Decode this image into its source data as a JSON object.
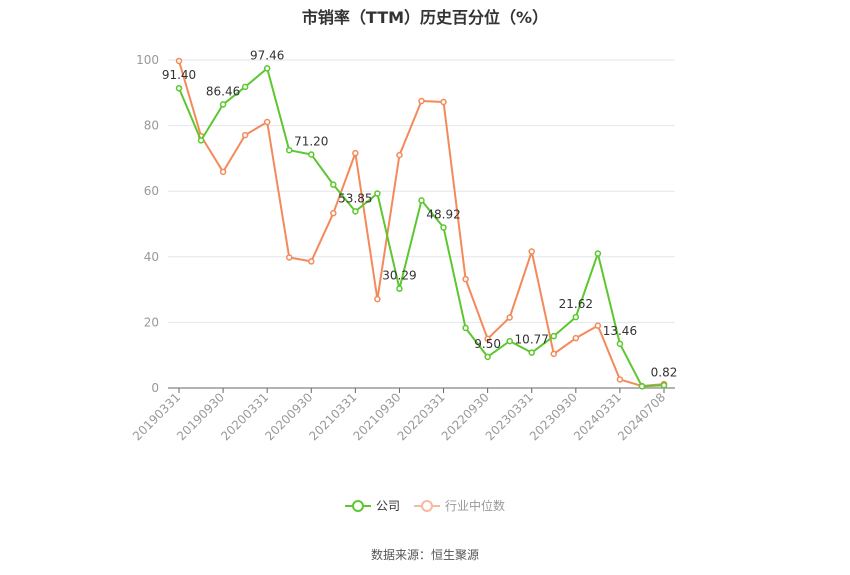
{
  "title": "市销率（TTM）历史百分位（%）",
  "legend": {
    "company": "公司",
    "industry": "行业中位数"
  },
  "source": "数据来源：恒生聚源",
  "colors": {
    "company": "#5cc72e",
    "industry": "#f4895a",
    "grid": "#e3e6ef",
    "axis": "#666666",
    "tick_label": "#999999"
  },
  "chart_data": {
    "type": "line",
    "title": "市销率（TTM）历史百分位（%）",
    "xlabel": "",
    "ylabel": "",
    "ylim": [
      0,
      100
    ],
    "yticks": [
      0,
      20,
      40,
      60,
      80,
      100
    ],
    "grid": true,
    "legend_position": "bottom",
    "x_tick_labels": [
      "20190331",
      "20190930",
      "20200331",
      "20200930",
      "20210331",
      "20210930",
      "20220331",
      "20220930",
      "20230331",
      "20230930",
      "20240331",
      "20240708"
    ],
    "x": [
      "20190331",
      "20190630",
      "20190930",
      "20191231",
      "20200331",
      "20200630",
      "20200930",
      "20201231",
      "20210331",
      "20210630",
      "20210930",
      "20211231",
      "20220331",
      "20220630",
      "20220930",
      "20221231",
      "20230331",
      "20230630",
      "20230930",
      "20231231",
      "20240331",
      "20240630",
      "20240708"
    ],
    "series": [
      {
        "name": "公司",
        "values": [
          91.4,
          75.5,
          86.46,
          91.8,
          97.46,
          72.5,
          71.2,
          62.0,
          53.85,
          59.3,
          30.29,
          57.2,
          48.92,
          18.3,
          9.5,
          14.3,
          10.77,
          15.8,
          21.62,
          41.0,
          13.46,
          0.5,
          0.82
        ],
        "labels": {
          "0": "91.40",
          "2": "86.46",
          "4": "97.46",
          "6": "71.20",
          "8": "53.85",
          "10": "30.29",
          "12": "48.92",
          "14": "9.50",
          "16": "10.77",
          "18": "21.62",
          "20": "13.46",
          "22": "0.82"
        }
      },
      {
        "name": "行业中位数",
        "values": [
          99.7,
          76.8,
          65.9,
          77.1,
          81.1,
          39.8,
          38.6,
          53.3,
          71.6,
          27.1,
          71.0,
          87.5,
          87.2,
          33.2,
          15.0,
          21.5,
          41.6,
          10.4,
          15.2,
          19.0,
          2.6,
          0.6,
          1.2
        ]
      }
    ]
  }
}
